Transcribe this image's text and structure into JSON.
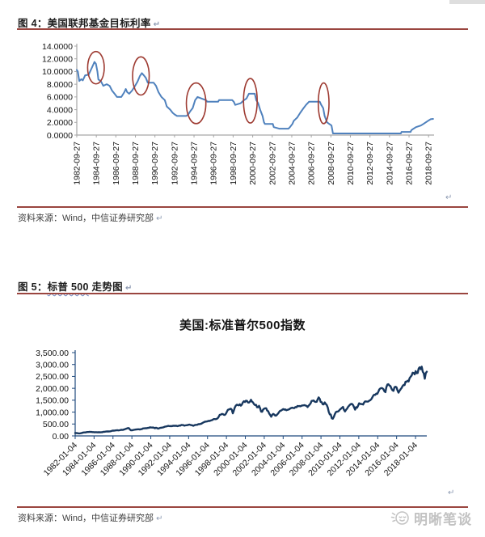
{
  "shared": {
    "return_mark": "↵"
  },
  "theme": {
    "accent_rule": "#9A453F",
    "text_dark": "#1F1F1F",
    "text_source": "#3F3F3F",
    "return_mark_color": "#8E9BB3",
    "wavy_underline": "#6D86C0",
    "watermark_color": "#C2C2C2",
    "fed_line": "#4F81BD",
    "annotation_red": "#9E3B32",
    "sp_line": "#17375E",
    "sp_axis": "#1F497D",
    "fed_axis_gray": "#A6A6A6"
  },
  "figure4": {
    "caption": "图 4：美国联邦基金目标利率",
    "source": "资料来源：Wind，中信证券研究部"
  },
  "figure5": {
    "caption_prefix": "图 5：",
    "caption_wavy": "标普 500",
    "caption_suffix": " 走势图",
    "source": "资料来源：Wind，中信证券研究部"
  },
  "watermark": {
    "text": "明晰笔谈",
    "icon": "smiley-moon-icon"
  },
  "chart_data": [
    {
      "type": "line",
      "name": "美国联邦基金目标利率",
      "title": "",
      "xlabel": "",
      "ylabel": "",
      "grid": false,
      "legend": "none",
      "xlim": [
        1982.74,
        2019.3
      ],
      "ylim": [
        0,
        14
      ],
      "x_ticks": [
        "1982-09-27",
        "1984-09-27",
        "1986-09-27",
        "1988-09-27",
        "1990-09-27",
        "1992-09-27",
        "1994-09-27",
        "1996-09-27",
        "1998-09-27",
        "2000-09-27",
        "2002-09-27",
        "2004-09-27",
        "2006-09-27",
        "2008-09-27",
        "2010-09-27",
        "2012-09-27",
        "2014-09-27",
        "2016-09-27",
        "2018-09-27"
      ],
      "y_ticks": [
        {
          "v": 14,
          "label": "14.0000"
        },
        {
          "v": 12,
          "label": "12.0000"
        },
        {
          "v": 10,
          "label": "10.0000"
        },
        {
          "v": 8,
          "label": "8.0000"
        },
        {
          "v": 6,
          "label": "6.0000"
        },
        {
          "v": 4,
          "label": "4.0000"
        },
        {
          "v": 2,
          "label": "2.0000"
        },
        {
          "v": 0,
          "label": "0.0000"
        }
      ],
      "line_color": "#4F81BD",
      "line_width": 2,
      "noise": 0,
      "points": [
        [
          1982.74,
          10.25
        ],
        [
          1982.85,
          10.0
        ],
        [
          1983.0,
          8.5
        ],
        [
          1983.2,
          8.8
        ],
        [
          1983.35,
          8.6
        ],
        [
          1983.6,
          9.4
        ],
        [
          1983.95,
          9.5
        ],
        [
          1984.25,
          10.5
        ],
        [
          1984.55,
          11.5
        ],
        [
          1984.7,
          11.2
        ],
        [
          1984.85,
          10.0
        ],
        [
          1984.95,
          8.75
        ],
        [
          1985.2,
          8.5
        ],
        [
          1985.45,
          7.75
        ],
        [
          1985.8,
          8.0
        ],
        [
          1986.1,
          7.75
        ],
        [
          1986.35,
          7.0
        ],
        [
          1986.6,
          6.5
        ],
        [
          1986.85,
          6.0
        ],
        [
          1987.3,
          6.0
        ],
        [
          1987.6,
          6.75
        ],
        [
          1987.75,
          7.25
        ],
        [
          1987.9,
          6.75
        ],
        [
          1988.1,
          6.5
        ],
        [
          1988.4,
          7.0
        ],
        [
          1988.7,
          7.75
        ],
        [
          1988.95,
          8.4
        ],
        [
          1989.2,
          9.3
        ],
        [
          1989.4,
          9.75
        ],
        [
          1989.55,
          9.5
        ],
        [
          1989.8,
          9.0
        ],
        [
          1990.0,
          8.25
        ],
        [
          1990.6,
          8.25
        ],
        [
          1990.85,
          7.75
        ],
        [
          1991.1,
          6.75
        ],
        [
          1991.4,
          6.0
        ],
        [
          1991.75,
          5.5
        ],
        [
          1991.95,
          4.5
        ],
        [
          1992.3,
          4.0
        ],
        [
          1992.55,
          3.5
        ],
        [
          1992.75,
          3.25
        ],
        [
          1993.0,
          3.0
        ],
        [
          1993.95,
          3.0
        ],
        [
          1994.15,
          3.25
        ],
        [
          1994.35,
          3.75
        ],
        [
          1994.6,
          4.25
        ],
        [
          1994.85,
          5.5
        ],
        [
          1995.1,
          6.0
        ],
        [
          1995.5,
          5.75
        ],
        [
          1995.95,
          5.5
        ],
        [
          1996.1,
          5.25
        ],
        [
          1997.2,
          5.25
        ],
        [
          1997.3,
          5.5
        ],
        [
          1998.65,
          5.5
        ],
        [
          1998.8,
          5.25
        ],
        [
          1998.95,
          4.75
        ],
        [
          1999.5,
          5.0
        ],
        [
          1999.85,
          5.5
        ],
        [
          2000.1,
          5.75
        ],
        [
          2000.35,
          6.5
        ],
        [
          2000.95,
          6.5
        ],
        [
          2001.1,
          5.5
        ],
        [
          2001.3,
          5.0
        ],
        [
          2001.5,
          4.0
        ],
        [
          2001.75,
          3.0
        ],
        [
          2001.9,
          2.0
        ],
        [
          2002.0,
          1.75
        ],
        [
          2002.8,
          1.75
        ],
        [
          2002.9,
          1.25
        ],
        [
          2003.45,
          1.0
        ],
        [
          2004.4,
          1.0
        ],
        [
          2004.55,
          1.25
        ],
        [
          2004.8,
          1.75
        ],
        [
          2004.95,
          2.25
        ],
        [
          2005.3,
          2.75
        ],
        [
          2005.6,
          3.5
        ],
        [
          2005.95,
          4.25
        ],
        [
          2006.2,
          4.75
        ],
        [
          2006.5,
          5.25
        ],
        [
          2007.6,
          5.25
        ],
        [
          2007.75,
          4.75
        ],
        [
          2007.95,
          4.25
        ],
        [
          2008.1,
          3.0
        ],
        [
          2008.35,
          2.0
        ],
        [
          2008.8,
          1.5
        ],
        [
          2008.95,
          0.25
        ],
        [
          2015.9,
          0.25
        ],
        [
          2015.97,
          0.5
        ],
        [
          2016.9,
          0.5
        ],
        [
          2016.97,
          0.75
        ],
        [
          2017.2,
          1.0
        ],
        [
          2017.45,
          1.25
        ],
        [
          2017.95,
          1.5
        ],
        [
          2018.2,
          1.75
        ],
        [
          2018.45,
          2.0
        ],
        [
          2018.7,
          2.25
        ],
        [
          2018.95,
          2.5
        ],
        [
          2019.2,
          2.55
        ]
      ],
      "annotations": {
        "shape": "ellipse",
        "color": "#9E3B32",
        "items": [
          {
            "t": 1984.7,
            "v": 10.6,
            "rt": 0.85,
            "rv": 2.55
          },
          {
            "t": 1989.3,
            "v": 9.3,
            "rt": 0.85,
            "rv": 3.0
          },
          {
            "t": 1994.95,
            "v": 5.0,
            "rt": 1.0,
            "rv": 3.2
          },
          {
            "t": 2000.5,
            "v": 5.4,
            "rt": 0.7,
            "rv": 3.5
          },
          {
            "t": 2008.0,
            "v": 5.0,
            "rt": 0.55,
            "rv": 3.2
          }
        ]
      }
    },
    {
      "type": "line",
      "name": "美国:标准普尔500指数",
      "title": "美国:标准普尔500指数",
      "xlabel": "",
      "ylabel": "",
      "grid": false,
      "legend": "none",
      "xlim": [
        1982.01,
        2019.2
      ],
      "ylim": [
        0,
        3500
      ],
      "x_ticks": [
        "1982-01-04",
        "1984-01-04",
        "1986-01-04",
        "1988-01-04",
        "1990-01-04",
        "1992-01-04",
        "1994-01-04",
        "1996-01-04",
        "1998-01-04",
        "2000-01-04",
        "2002-01-04",
        "2004-01-04",
        "2006-01-04",
        "2008-01-04",
        "2010-01-04",
        "2012-01-04",
        "2014-01-04",
        "2016-01-04",
        "2018-01-04"
      ],
      "y_ticks": [
        {
          "v": 3500,
          "label": "3,500.00"
        },
        {
          "v": 3000,
          "label": "3,000.00"
        },
        {
          "v": 2500,
          "label": "2,500.00"
        },
        {
          "v": 2000,
          "label": "2,000.00"
        },
        {
          "v": 1500,
          "label": "1,500.00"
        },
        {
          "v": 1000,
          "label": "1,000.00"
        },
        {
          "v": 500,
          "label": "500.00"
        },
        {
          "v": 0,
          "label": "0.00"
        }
      ],
      "line_color": "#17375E",
      "line_width": 2.4,
      "noise": 0.09,
      "points": [
        [
          1982.01,
          120
        ],
        [
          1982.3,
          112
        ],
        [
          1982.6,
          105
        ],
        [
          1982.9,
          140
        ],
        [
          1983.3,
          165
        ],
        [
          1983.8,
          163
        ],
        [
          1984.2,
          155
        ],
        [
          1984.55,
          150
        ],
        [
          1985.0,
          170
        ],
        [
          1985.5,
          188
        ],
        [
          1986.0,
          210
        ],
        [
          1986.5,
          240
        ],
        [
          1986.75,
          235
        ],
        [
          1987.0,
          255
        ],
        [
          1987.3,
          290
        ],
        [
          1987.62,
          335
        ],
        [
          1987.75,
          315
        ],
        [
          1987.83,
          230
        ],
        [
          1988.0,
          250
        ],
        [
          1988.5,
          265
        ],
        [
          1989.0,
          285
        ],
        [
          1989.5,
          320
        ],
        [
          1989.75,
          350
        ],
        [
          1990.0,
          352
        ],
        [
          1990.45,
          340
        ],
        [
          1990.55,
          365
        ],
        [
          1990.8,
          300
        ],
        [
          1991.0,
          330
        ],
        [
          1991.3,
          375
        ],
        [
          1992.0,
          415
        ],
        [
          1992.5,
          410
        ],
        [
          1993.0,
          435
        ],
        [
          1993.6,
          450
        ],
        [
          1994.05,
          470
        ],
        [
          1994.3,
          445
        ],
        [
          1994.7,
          455
        ],
        [
          1995.0,
          465
        ],
        [
          1995.5,
          540
        ],
        [
          1996.0,
          620
        ],
        [
          1996.5,
          670
        ],
        [
          1997.0,
          755
        ],
        [
          1997.55,
          950
        ],
        [
          1997.8,
          905
        ],
        [
          1998.0,
          975
        ],
        [
          1998.3,
          1100
        ],
        [
          1998.5,
          1185
        ],
        [
          1998.68,
          960
        ],
        [
          1998.9,
          1160
        ],
        [
          1999.0,
          1250
        ],
        [
          1999.4,
          1350
        ],
        [
          1999.6,
          1280
        ],
        [
          1999.95,
          1450
        ],
        [
          2000.2,
          1520
        ],
        [
          2000.45,
          1420
        ],
        [
          2000.65,
          1490
        ],
        [
          2000.95,
          1330
        ],
        [
          2001.1,
          1370
        ],
        [
          2001.3,
          1150
        ],
        [
          2001.45,
          1250
        ],
        [
          2001.7,
          990
        ],
        [
          2001.95,
          1140
        ],
        [
          2002.2,
          1110
        ],
        [
          2002.45,
          1000
        ],
        [
          2002.75,
          800
        ],
        [
          2002.9,
          910
        ],
        [
          2003.2,
          840
        ],
        [
          2003.5,
          990
        ],
        [
          2003.95,
          1110
        ],
        [
          2004.3,
          1130
        ],
        [
          2004.6,
          1095
        ],
        [
          2005.0,
          1200
        ],
        [
          2005.3,
          1160
        ],
        [
          2005.7,
          1230
        ],
        [
          2006.0,
          1280
        ],
        [
          2006.55,
          1260
        ],
        [
          2007.0,
          1430
        ],
        [
          2007.4,
          1500
        ],
        [
          2007.55,
          1460
        ],
        [
          2007.78,
          1560
        ],
        [
          2008.0,
          1400
        ],
        [
          2008.2,
          1330
        ],
        [
          2008.4,
          1400
        ],
        [
          2008.65,
          1260
        ],
        [
          2008.78,
          1100
        ],
        [
          2008.9,
          900
        ],
        [
          2009.05,
          930
        ],
        [
          2009.2,
          680
        ],
        [
          2009.5,
          920
        ],
        [
          2009.75,
          1060
        ],
        [
          2010.0,
          1130
        ],
        [
          2010.3,
          1210
        ],
        [
          2010.5,
          1030
        ],
        [
          2010.75,
          1180
        ],
        [
          2011.0,
          1280
        ],
        [
          2011.35,
          1345
        ],
        [
          2011.6,
          1120
        ],
        [
          2011.72,
          1220
        ],
        [
          2011.85,
          1130
        ],
        [
          2012.0,
          1290
        ],
        [
          2012.3,
          1410
        ],
        [
          2012.45,
          1310
        ],
        [
          2012.7,
          1430
        ],
        [
          2013.0,
          1470
        ],
        [
          2013.5,
          1650
        ],
        [
          2013.95,
          1840
        ],
        [
          2014.5,
          1965
        ],
        [
          2014.78,
          1860
        ],
        [
          2015.0,
          2060
        ],
        [
          2015.4,
          2115
        ],
        [
          2015.65,
          1870
        ],
        [
          2015.85,
          2080
        ],
        [
          2016.05,
          1940
        ],
        [
          2016.12,
          1830
        ],
        [
          2016.5,
          2100
        ],
        [
          2016.85,
          2130
        ],
        [
          2017.0,
          2270
        ],
        [
          2017.5,
          2430
        ],
        [
          2017.95,
          2680
        ],
        [
          2018.06,
          2870
        ],
        [
          2018.15,
          2580
        ],
        [
          2018.35,
          2720
        ],
        [
          2018.55,
          2780
        ],
        [
          2018.73,
          2930
        ],
        [
          2018.82,
          2650
        ],
        [
          2018.9,
          2780
        ],
        [
          2018.99,
          2350
        ],
        [
          2019.1,
          2670
        ],
        [
          2019.2,
          2700
        ]
      ]
    }
  ]
}
